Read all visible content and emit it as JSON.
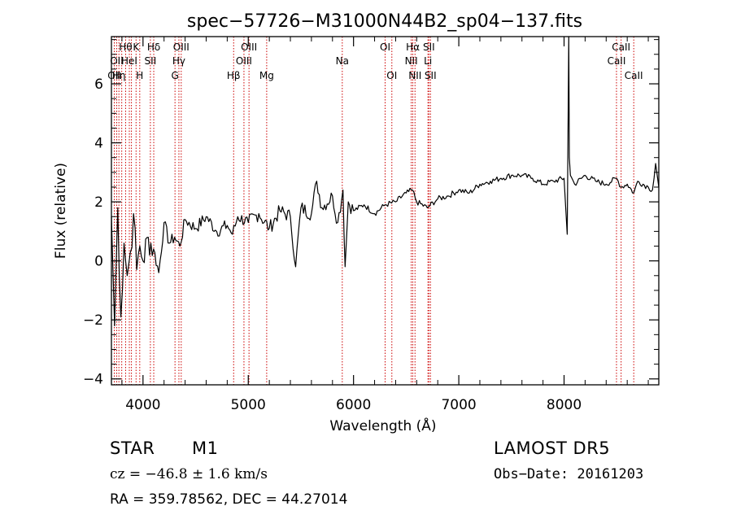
{
  "chart_data": {
    "type": "line",
    "title": "spec−57726−M31000N44B2_sp04−137.fits",
    "xlabel": "Wavelength (Å)",
    "ylabel": "Flux (relative)",
    "xlim": [
      3700,
      8900
    ],
    "ylim": [
      -4.2,
      7.6
    ],
    "xticks": [
      4000,
      5000,
      6000,
      7000,
      8000
    ],
    "yticks": [
      -4,
      -2,
      0,
      2,
      4,
      6
    ],
    "grid": false,
    "series": [
      {
        "x": [
          3700,
          3730,
          3760,
          3790,
          3820,
          3850,
          3880,
          3910,
          3940,
          3970,
          4000,
          4050,
          4100,
          4150,
          4200,
          4250,
          4300,
          4350,
          4400,
          4500,
          4600,
          4700,
          4800,
          4850,
          4900,
          5000,
          5100,
          5200,
          5300,
          5400,
          5450,
          5500,
          5600,
          5650,
          5700,
          5800,
          5850,
          5900,
          5920,
          5950,
          6000,
          6100,
          6200,
          6300,
          6400,
          6500,
          6560,
          6600,
          6700,
          6800,
          6900,
          7000,
          7100,
          7200,
          7300,
          7400,
          7500,
          7600,
          7700,
          7800,
          7900,
          8000,
          8030,
          8045,
          8050,
          8060,
          8100,
          8200,
          8300,
          8400,
          8500,
          8542,
          8600,
          8662,
          8700,
          8800,
          8840,
          8870,
          8900
        ],
        "y": [
          1.5,
          -2.2,
          1.8,
          -1.9,
          0.6,
          -0.5,
          0.3,
          1.6,
          -0.3,
          0.5,
          0.0,
          0.8,
          0.4,
          -0.4,
          1.3,
          0.6,
          0.8,
          0.5,
          1.4,
          1.1,
          1.5,
          1.0,
          1.2,
          0.9,
          1.5,
          1.3,
          1.6,
          1.1,
          1.7,
          1.5,
          -0.2,
          1.8,
          1.6,
          2.7,
          1.8,
          2.2,
          1.3,
          2.4,
          -0.2,
          2.0,
          1.7,
          1.9,
          1.6,
          1.9,
          2.0,
          2.3,
          2.4,
          2.0,
          1.8,
          2.1,
          2.2,
          2.4,
          2.3,
          2.6,
          2.7,
          2.8,
          2.9,
          2.9,
          2.8,
          2.6,
          2.7,
          2.8,
          0.9,
          7.6,
          3.5,
          2.9,
          2.6,
          2.9,
          2.7,
          2.6,
          2.8,
          2.5,
          2.6,
          2.3,
          2.7,
          2.5,
          2.4,
          3.3,
          2.5
        ]
      }
    ],
    "lines": [
      {
        "wave": 3727,
        "labels": [
          {
            "text": "OII",
            "row": 2
          }
        ]
      },
      {
        "wave": 3750,
        "labels": [
          {
            "text": "OII",
            "row": 1
          }
        ]
      },
      {
        "wave": 3771,
        "labels": [
          {
            "text": "Hη",
            "row": 2
          }
        ]
      },
      {
        "wave": 3798,
        "labels": []
      },
      {
        "wave": 3835,
        "labels": [
          {
            "text": "Hθ",
            "row": 0
          }
        ]
      },
      {
        "wave": 3870,
        "labels": [
          {
            "text": "HeI",
            "row": 1
          }
        ]
      },
      {
        "wave": 3890,
        "labels": []
      },
      {
        "wave": 3934,
        "labels": [
          {
            "text": "K",
            "row": 0
          }
        ]
      },
      {
        "wave": 3969,
        "labels": [
          {
            "text": "H",
            "row": 2
          }
        ]
      },
      {
        "wave": 4070,
        "labels": [
          {
            "text": "SII",
            "row": 1
          }
        ]
      },
      {
        "wave": 4102,
        "labels": [
          {
            "text": "Hδ",
            "row": 0
          }
        ]
      },
      {
        "wave": 4304,
        "labels": [
          {
            "text": "G",
            "row": 2
          }
        ]
      },
      {
        "wave": 4341,
        "labels": [
          {
            "text": "Hγ",
            "row": 1
          }
        ]
      },
      {
        "wave": 4363,
        "labels": [
          {
            "text": "OIII",
            "row": 0
          }
        ]
      },
      {
        "wave": 4861,
        "labels": [
          {
            "text": "Hβ",
            "row": 2
          }
        ]
      },
      {
        "wave": 4959,
        "labels": [
          {
            "text": "OIII",
            "row": 1
          }
        ]
      },
      {
        "wave": 5007,
        "labels": [
          {
            "text": "OIII",
            "row": 0
          }
        ]
      },
      {
        "wave": 5175,
        "labels": [
          {
            "text": "Mg",
            "row": 2
          }
        ]
      },
      {
        "wave": 5893,
        "labels": [
          {
            "text": "Na",
            "row": 1
          }
        ]
      },
      {
        "wave": 6300,
        "labels": [
          {
            "text": "OI",
            "row": 0
          }
        ]
      },
      {
        "wave": 6364,
        "labels": [
          {
            "text": "OI",
            "row": 2
          }
        ]
      },
      {
        "wave": 6548,
        "labels": [
          {
            "text": "NII",
            "row": 1
          }
        ]
      },
      {
        "wave": 6563,
        "labels": [
          {
            "text": "Hα",
            "row": 0
          }
        ]
      },
      {
        "wave": 6584,
        "labels": [
          {
            "text": "NII",
            "row": 2
          }
        ]
      },
      {
        "wave": 6707,
        "labels": [
          {
            "text": "Li",
            "row": 1
          }
        ]
      },
      {
        "wave": 6716,
        "labels": [
          {
            "text": "SII",
            "row": 0
          }
        ]
      },
      {
        "wave": 6731,
        "labels": [
          {
            "text": "SII",
            "row": 2
          }
        ]
      },
      {
        "wave": 8498,
        "labels": [
          {
            "text": "CaII",
            "row": 1
          }
        ]
      },
      {
        "wave": 8542,
        "labels": [
          {
            "text": "CaII",
            "row": 0
          }
        ]
      },
      {
        "wave": 8662,
        "labels": [
          {
            "text": "CaII",
            "row": 2
          }
        ]
      }
    ]
  },
  "info": {
    "object_class": "STAR",
    "subclass": "M1",
    "survey": "LAMOST DR5",
    "velocity": "cz = −46.8 ± 1.6 km/s",
    "obs_date": "Obs−Date: 20161203",
    "coords": "RA = 359.78562, DEC =  44.27014"
  },
  "colors": {
    "spectrum": "#000000",
    "line_markers": "#cc0000",
    "axes": "#000000",
    "background": "#ffffff"
  }
}
